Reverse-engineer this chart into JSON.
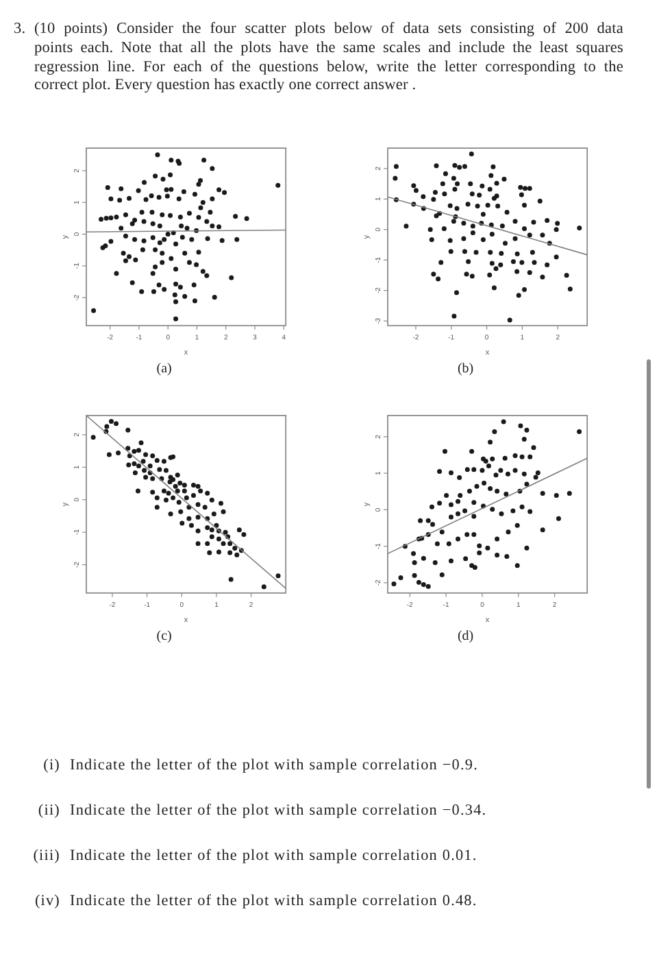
{
  "chart_data": [
    {
      "type": "other",
      "title": "3. (10 points) Consider the four scatter plots below of data sets consisting of 200 data points each. Note that all the plots have the same scales and include the least squares regression line. For each of the questions below, write the letter corresponding to the correct plot. Every question has exactly one correct answer ."
    },
    {
      "type": "scatter",
      "title": "(a)",
      "xlabel": "x",
      "ylabel": "y",
      "xlim": [
        -2.82,
        4.07
      ],
      "ylim": [
        -2.88,
        2.71
      ],
      "xticks": [
        -2,
        -1,
        0,
        1,
        2,
        3,
        4
      ],
      "yticks": [
        -2,
        -1,
        0,
        1,
        2
      ],
      "series": [
        {
          "color": "#1a1a1a",
          "marker": "circle",
          "x": [
            -0.36,
            0.11,
            0.35,
            0.39,
            1.24,
            1.53,
            -0.44,
            -0.17,
            0.08,
            1.06,
            1.12,
            -2.08,
            -1.62,
            -0.82,
            3.8,
            1.76,
            1.95,
            0.55,
            -0.05,
            0.11,
            -1.02,
            -0.76,
            -1.34,
            -1.97,
            -1.67,
            -0.57,
            -0.31,
            -0.02,
            0.38,
            0.93,
            1.53,
            1.21,
            1.13,
            1.46,
            2.33,
            2.72,
            -2.31,
            -2.13,
            -1.97,
            -1.78,
            -1.46,
            -1.15,
            -0.9,
            -0.55,
            -0.2,
            0.08,
            0.43,
            0.74,
            1.06,
            1.34,
            1.53,
            -1.62,
            -1.23,
            -0.83,
            -0.52,
            -0.28,
            0.0,
            0.19,
            0.46,
            0.66,
            0.98,
            1.76,
            -2.25,
            -2.16,
            -1.97,
            -1.46,
            -1.15,
            -0.83,
            -0.52,
            -0.13,
            0.27,
            0.5,
            0.82,
            1.37,
            1.87,
            2.38,
            -1.54,
            -1.34,
            -1.12,
            -0.44,
            -0.2,
            0.11,
            0.58,
            1.06,
            -1.78,
            -1.23,
            -0.44,
            -0.52,
            -0.2,
            0.27,
            0.74,
            1.21,
            2.19,
            -0.91,
            -0.49,
            -0.31,
            -0.13,
            0.27,
            0.43,
            0.9,
            1.61,
            0.24,
            0.27,
            0.58,
            0.93,
            -2.57,
            0.27,
            -1.46,
            -0.87,
            -0.28,
            0.98,
            1.34
          ],
          "values": [
            2.5,
            2.33,
            2.3,
            2.23,
            2.33,
            2.07,
            1.83,
            1.73,
            1.87,
            1.57,
            1.69,
            1.47,
            1.43,
            1.63,
            1.54,
            1.4,
            1.31,
            1.34,
            1.4,
            1.41,
            1.37,
            1.09,
            1.13,
            1.11,
            1.07,
            1.21,
            1.16,
            1.2,
            1.11,
            1.26,
            1.11,
            1.0,
            0.83,
            0.69,
            0.56,
            0.49,
            0.47,
            0.5,
            0.51,
            0.54,
            0.61,
            0.44,
            0.69,
            0.69,
            0.61,
            0.59,
            0.54,
            0.66,
            0.53,
            0.4,
            0.26,
            0.19,
            0.33,
            0.4,
            0.33,
            0.26,
            0.0,
            0.04,
            0.26,
            0.19,
            0.11,
            0.23,
            -0.43,
            -0.37,
            -0.23,
            -0.06,
            -0.17,
            -0.21,
            -0.11,
            -0.17,
            -0.31,
            -0.1,
            -0.17,
            -0.14,
            -0.2,
            -0.17,
            -0.6,
            -0.71,
            -0.81,
            -0.49,
            -0.6,
            -0.77,
            -0.6,
            -0.57,
            -1.24,
            -1.53,
            -1.03,
            -1.24,
            -0.89,
            -1.1,
            -0.89,
            -1.17,
            -1.37,
            -1.81,
            -1.81,
            -1.6,
            -1.74,
            -1.57,
            -1.67,
            -1.6,
            -1.99,
            -1.91,
            -2.13,
            -1.96,
            -2.1,
            -2.41,
            -2.67,
            -0.84,
            -0.49,
            -0.27,
            -0.96,
            -1.31
          ]
        },
        {
          "type": "line",
          "color": "#808080",
          "x": [
            -2.82,
            4.07
          ],
          "values": [
            0.07,
            0.13
          ]
        }
      ]
    },
    {
      "type": "scatter",
      "title": "(b)",
      "xlabel": "x",
      "ylabel": "y",
      "xlim": [
        -2.79,
        2.83
      ],
      "ylim": [
        -3.15,
        2.67
      ],
      "xticks": [
        -2,
        -1,
        0,
        1,
        2
      ],
      "yticks": [
        -3,
        -2,
        -1,
        0,
        1,
        2
      ],
      "series": [
        {
          "color": "#1a1a1a",
          "marker": "circle",
          "x": [
            -0.43,
            -2.55,
            -1.42,
            -0.9,
            -0.77,
            -0.62,
            0.18,
            -2.58,
            -1.16,
            -0.93,
            0.12,
            0.49,
            -2.06,
            -1.99,
            -1.24,
            -0.83,
            -0.46,
            -0.13,
            0.28,
            0.95,
            1.08,
            1.21,
            -1.79,
            -1.5,
            -1.45,
            -1.19,
            -0.9,
            -0.41,
            -0.21,
            0.09,
            0.21,
            0.28,
            0.98,
            1.5,
            -2.06,
            -1.78,
            -1.33,
            -1.03,
            -0.84,
            -0.53,
            -0.26,
            0.03,
            0.31,
            0.57,
            1.06,
            -2.55,
            -2.27,
            -1.59,
            -1.2,
            -0.93,
            -0.65,
            -0.39,
            -0.15,
            0.13,
            0.44,
            0.8,
            1.06,
            1.32,
            1.7,
            1.99,
            2.61,
            -1.55,
            -1.03,
            -0.65,
            -0.39,
            -0.1,
            0.15,
            0.52,
            0.8,
            1.21,
            1.57,
            1.96,
            -1.01,
            -0.62,
            -0.3,
            0.1,
            0.41,
            0.86,
            1.29,
            1.77,
            1.96,
            -1.29,
            -0.52,
            0.15,
            0.39,
            0.75,
            0.99,
            1.34,
            1.7,
            -1.5,
            -1.37,
            -0.57,
            -0.41,
            0.08,
            0.26,
            0.85,
            1.21,
            1.57,
            2.25,
            -0.85,
            0.21,
            1.06,
            0.9,
            2.35,
            -0.92,
            0.65,
            -1.42,
            -0.88,
            -0.1
          ],
          "values": [
            2.48,
            2.07,
            2.09,
            2.1,
            2.04,
            2.07,
            2.06,
            1.68,
            1.83,
            1.68,
            1.77,
            1.65,
            1.44,
            1.28,
            1.5,
            1.5,
            1.5,
            1.43,
            1.52,
            1.38,
            1.35,
            1.35,
            1.08,
            0.99,
            1.22,
            1.17,
            1.32,
            1.17,
            1.13,
            1.32,
            1.02,
            1.1,
            1.14,
            0.93,
            0.83,
            0.69,
            0.53,
            0.78,
            0.69,
            0.83,
            0.77,
            0.8,
            0.77,
            0.57,
            0.8,
            0.98,
            0.11,
            0.0,
            0.03,
            0.27,
            0.21,
            0.11,
            0.21,
            0.15,
            0.12,
            0.27,
            0.03,
            0.24,
            0.3,
            0.2,
            0.05,
            -0.33,
            -0.36,
            -0.3,
            -0.11,
            -0.33,
            -0.15,
            -0.45,
            -0.3,
            -0.18,
            -0.18,
            0.0,
            -0.72,
            -0.72,
            -0.75,
            -0.75,
            -0.78,
            -0.8,
            -0.75,
            -0.45,
            -0.9,
            -1.08,
            -1.05,
            -1.11,
            -1.16,
            -1.05,
            -1.08,
            -1.08,
            -1.16,
            -1.46,
            -1.62,
            -1.46,
            -1.53,
            -1.49,
            -1.28,
            -1.38,
            -1.41,
            -1.56,
            -1.5,
            -2.07,
            -1.91,
            -1.97,
            -2.16,
            -1.95,
            -2.84,
            -2.97,
            0.45,
            0.42,
            0.5
          ]
        },
        {
          "type": "line",
          "color": "#808080",
          "x": [
            -2.79,
            2.83
          ],
          "values": [
            1.07,
            -0.83
          ]
        }
      ]
    },
    {
      "type": "scatter",
      "title": "(c)",
      "xlabel": "x",
      "ylabel": "y",
      "xlim": [
        -2.75,
        3.0
      ],
      "ylim": [
        -2.87,
        2.59
      ],
      "xticks": [
        -2,
        -1,
        0,
        1,
        2
      ],
      "yticks": [
        -2,
        -1,
        0,
        1,
        2
      ],
      "series": [
        {
          "color": "#1a1a1a",
          "marker": "circle",
          "x": [
            -2.16,
            -2.03,
            -1.89,
            -2.18,
            -2.55,
            -1.55,
            -2.09,
            -1.83,
            -1.55,
            -1.37,
            -1.5,
            -1.24,
            -1.17,
            -1.04,
            -0.84,
            -1.53,
            -1.37,
            -1.24,
            -1.11,
            -0.91,
            -0.71,
            -0.51,
            -0.32,
            -0.25,
            -1.34,
            -1.08,
            -0.91,
            -0.64,
            -0.45,
            -0.32,
            -0.12,
            -1.26,
            -0.84,
            -0.58,
            -0.34,
            -0.25,
            -0.18,
            -0.05,
            0.08,
            -0.51,
            -0.38,
            -0.12,
            0.08,
            0.34,
            0.47,
            -0.71,
            -0.45,
            -0.25,
            -0.08,
            0.14,
            0.34,
            0.54,
            0.74,
            -0.32,
            -0.03,
            0.21,
            0.47,
            0.67,
            0.87,
            1.13,
            0.01,
            0.21,
            0.47,
            0.74,
            0.93,
            1.2,
            0.28,
            0.47,
            0.74,
            1.0,
            1.07,
            1.26,
            0.47,
            0.87,
            1.07,
            1.2,
            1.33,
            1.39,
            1.53,
            0.8,
            1.07,
            1.39,
            1.59,
            1.66,
            1.79,
            1.72,
            1.42,
            2.37,
            2.78,
            -0.84,
            -0.71,
            -1.04,
            0.74,
            0.87
          ],
          "values": [
            2.25,
            2.41,
            2.34,
            2.1,
            1.92,
            2.14,
            1.39,
            1.44,
            1.58,
            1.49,
            1.35,
            1.52,
            1.75,
            1.39,
            1.35,
            1.07,
            1.11,
            1.04,
            1.18,
            1.04,
            1.21,
            1.18,
            1.3,
            1.32,
            0.83,
            0.9,
            0.83,
            0.93,
            0.9,
            0.69,
            0.76,
            0.27,
            0.65,
            0.65,
            0.55,
            0.62,
            0.41,
            0.51,
            0.45,
            0.27,
            0.2,
            0.27,
            0.27,
            0.45,
            0.41,
            -0.23,
            -0.01,
            0.06,
            -0.08,
            0.06,
            0.13,
            0.27,
            0.2,
            -0.44,
            -0.37,
            -0.23,
            -0.15,
            -0.23,
            -0.01,
            -0.11,
            -0.72,
            -0.58,
            -0.54,
            -0.58,
            -0.44,
            -0.37,
            -0.79,
            -0.96,
            -0.86,
            -0.79,
            -0.96,
            -1.0,
            -1.35,
            -1.14,
            -1.21,
            -1.35,
            -1.14,
            -1.35,
            -1.49,
            -1.63,
            -1.61,
            -1.63,
            -1.7,
            -0.93,
            -1.07,
            -1.56,
            -2.45,
            -2.68,
            -2.34,
            0.23,
            0.06,
            0.69,
            -1.35,
            -0.93
          ]
        },
        {
          "type": "line",
          "color": "#808080",
          "x": [
            -2.75,
            3.0
          ],
          "values": [
            2.59,
            -2.73
          ]
        }
      ]
    },
    {
      "type": "scatter",
      "title": "(d)",
      "xlabel": "x",
      "ylabel": "y",
      "xlim": [
        -2.61,
        2.9
      ],
      "ylim": [
        -2.28,
        2.58
      ],
      "xticks": [
        -2,
        -1,
        0,
        1,
        2
      ],
      "yticks": [
        -2,
        -1,
        0,
        1,
        2
      ],
      "series": [
        {
          "color": "#1a1a1a",
          "marker": "circle",
          "x": [
            0.59,
            1.06,
            1.23,
            0.34,
            0.22,
            1.16,
            -1.03,
            -0.29,
            0.03,
            0.1,
            0.28,
            0.63,
            0.91,
            1.1,
            1.32,
            1.42,
            -1.18,
            -0.86,
            -0.63,
            -0.41,
            -0.23,
            0.0,
            0.18,
            0.38,
            0.51,
            0.71,
            0.91,
            1.16,
            1.54,
            -1.71,
            -1.39,
            -1.18,
            -0.99,
            -0.86,
            -0.67,
            -0.61,
            -0.35,
            -0.15,
            0.05,
            0.22,
            0.41,
            0.66,
            1.04,
            1.23,
            1.48,
            1.67,
            2.05,
            2.41,
            -1.67,
            -1.37,
            -1.11,
            -0.86,
            -0.67,
            -0.48,
            -0.23,
            0.03,
            0.28,
            0.53,
            0.85,
            1.1,
            1.32,
            1.67,
            2.11,
            -2.13,
            -1.9,
            -1.75,
            -1.49,
            -1.24,
            -0.92,
            -0.67,
            -0.42,
            -0.23,
            -0.08,
            0.15,
            0.41,
            0.72,
            0.97,
            1.23,
            -2.25,
            -1.87,
            -1.62,
            -1.3,
            -1.11,
            -0.86,
            -0.46,
            -0.29,
            -0.2,
            -0.08,
            0.41,
            0.68,
            0.97,
            -1.87,
            -1.75,
            -1.62,
            -1.49,
            -2.44,
            -1.49,
            -0.23,
            2.68
          ],
          "values": [
            2.41,
            2.3,
            2.18,
            2.14,
            1.85,
            1.93,
            1.6,
            1.6,
            1.39,
            1.33,
            1.39,
            1.41,
            1.48,
            1.45,
            1.45,
            1.7,
            1.05,
            1.01,
            0.88,
            1.1,
            1.1,
            1.08,
            1.2,
            0.95,
            1.08,
            0.98,
            1.08,
            0.98,
            1.01,
            -0.3,
            0.08,
            0.18,
            0.39,
            0.14,
            0.23,
            0.39,
            0.51,
            0.64,
            0.73,
            0.58,
            0.51,
            0.43,
            0.51,
            0.7,
            0.89,
            0.45,
            0.39,
            0.45,
            -0.78,
            -0.4,
            -0.61,
            -0.2,
            -0.11,
            -0.03,
            -0.18,
            0.1,
            0.01,
            -0.11,
            -0.03,
            0.08,
            -0.05,
            -0.55,
            -0.24,
            -1.0,
            -1.2,
            -0.8,
            -0.68,
            -0.93,
            -0.93,
            -0.8,
            -0.68,
            -0.68,
            -0.99,
            -1.05,
            -0.8,
            -0.61,
            -0.43,
            -1.05,
            -1.86,
            -1.45,
            -1.33,
            -1.45,
            -1.78,
            -1.4,
            -1.34,
            -1.53,
            -1.58,
            -1.18,
            -1.24,
            -1.28,
            -1.53,
            -1.8,
            -1.99,
            -2.05,
            -2.1,
            -2.03,
            -0.3,
            0.2,
            2.14
          ]
        },
        {
          "type": "line",
          "color": "#808080",
          "x": [
            -2.61,
            2.9
          ],
          "values": [
            -1.2,
            1.41
          ]
        }
      ]
    },
    {
      "type": "other",
      "annotations": [
        "(i) Indicate the letter of the plot with sample correlation −0.9.",
        "(ii) Indicate the letter of the plot with sample correlation −0.34.",
        "(iii) Indicate the letter of the plot with sample correlation 0.01.",
        "(iv) Indicate the letter of the plot with sample correlation 0.48."
      ]
    }
  ]
}
